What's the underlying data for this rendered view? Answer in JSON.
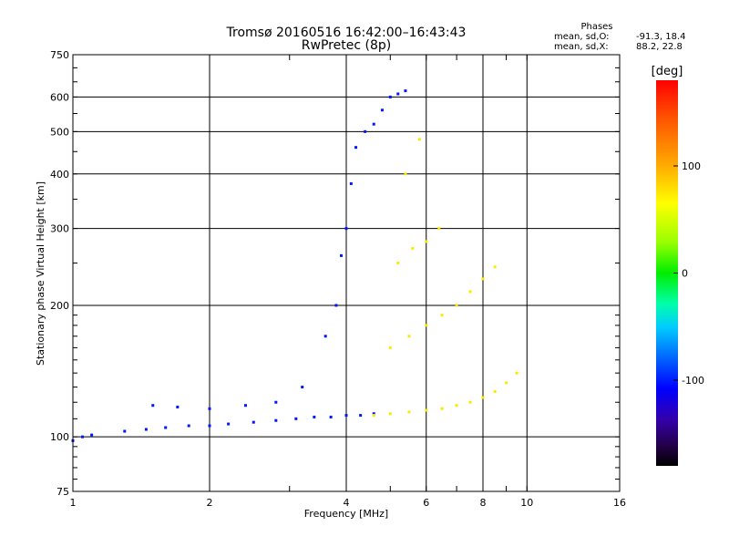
{
  "chart_data": {
    "type": "scatter",
    "title": "Tromsø 20160516 16:42:00–16:43:43",
    "subtitle": "RwPretec (8p)",
    "xlabel": "Frequency [MHz]",
    "ylabel": "Stationary phase Virtual Height [km]",
    "x_scale": "log",
    "y_scale": "log",
    "xlim": [
      1,
      16
    ],
    "ylim": [
      75,
      750
    ],
    "x_ticks": [
      1,
      2,
      4,
      6,
      8,
      10,
      16
    ],
    "x_tick_labels": [
      "1",
      "2",
      "4",
      "6",
      "8",
      "10",
      "16"
    ],
    "y_ticks": [
      75,
      100,
      200,
      300,
      400,
      500,
      600,
      750
    ],
    "y_tick_labels": [
      "75",
      "100",
      "200",
      "300",
      "400",
      "500",
      "600",
      "750"
    ],
    "grid": true,
    "phase_header": "Phases",
    "phase_stats": [
      {
        "label": "mean, sd,O:",
        "value": "-91.3, 18.4"
      },
      {
        "label": "mean, sd,X:",
        "value": "88.2, 22.8"
      }
    ],
    "colorbar": {
      "label": "[deg]",
      "range": [
        -180,
        180
      ],
      "ticks": [
        100,
        0,
        -100
      ],
      "tick_labels": [
        "100",
        "0",
        "-100"
      ],
      "colormap": "rainbow"
    },
    "series": [
      {
        "phase": -91,
        "x": [
          1.0,
          1.05,
          1.1,
          1.3,
          1.45,
          1.6,
          1.8,
          2.0,
          2.2,
          2.5,
          2.8,
          3.1,
          3.4,
          3.7,
          4.0,
          4.3,
          4.6,
          1.5,
          1.7,
          2.0,
          2.4,
          2.8,
          3.2,
          3.6,
          3.8,
          3.9,
          4.0,
          4.1,
          4.2,
          4.4,
          4.6,
          4.8,
          5.0,
          5.2,
          5.4
        ],
        "y": [
          98,
          100,
          101,
          103,
          104,
          105,
          106,
          106,
          107,
          108,
          109,
          110,
          111,
          111,
          112,
          112,
          113,
          118,
          117,
          116,
          118,
          120,
          130,
          170,
          200,
          260,
          300,
          380,
          460,
          500,
          520,
          560,
          600,
          610,
          620
        ]
      },
      {
        "phase": 88,
        "x": [
          4.6,
          5.0,
          5.5,
          6.0,
          6.5,
          7.0,
          7.5,
          8.0,
          8.5,
          9.0,
          9.5,
          5.0,
          5.5,
          6.0,
          6.5,
          7.0,
          7.5,
          8.0,
          8.5,
          5.2,
          5.6,
          6.0,
          6.4,
          5.4,
          5.8
        ],
        "y": [
          112,
          113,
          114,
          115,
          116,
          118,
          120,
          123,
          127,
          133,
          140,
          160,
          170,
          180,
          190,
          200,
          215,
          230,
          245,
          250,
          270,
          280,
          300,
          400,
          480
        ]
      }
    ]
  }
}
